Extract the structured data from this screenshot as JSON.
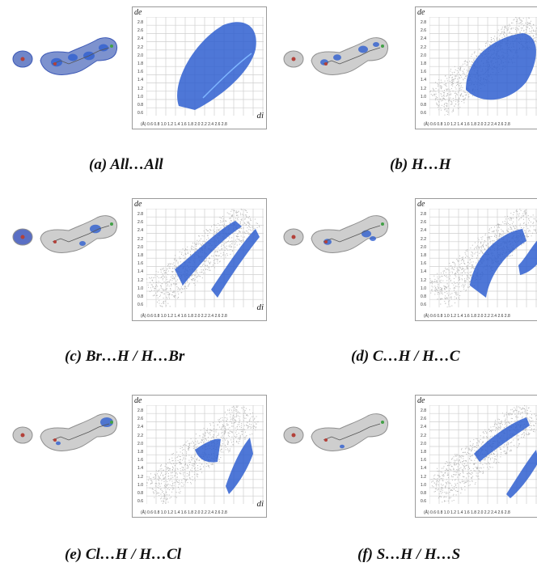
{
  "figure": {
    "panels": [
      {
        "id": "a",
        "caption": "(a) All…All"
      },
      {
        "id": "b",
        "caption": "(b) H…H"
      },
      {
        "id": "c",
        "caption": "(c) Br…H / H…Br"
      },
      {
        "id": "d",
        "caption": "(d) C…H / H…C"
      },
      {
        "id": "e",
        "caption": "(e) Cl…H / H…Cl"
      },
      {
        "id": "f",
        "caption": "(f) S…H / H…S"
      }
    ],
    "axis": {
      "y_label": "de",
      "x_label": "di",
      "y_ticks": [
        "2.8",
        "2.6",
        "2.4",
        "2.2",
        "2.0",
        "1.8",
        "1.6",
        "1.4",
        "1.2",
        "1.0",
        "0.8",
        "0.6"
      ],
      "x_ticks": "(Å) 0.6 0.8 1.0 1.2 1.4 1.6 1.8 2.0 2.2 2.4 2.6 2.8"
    },
    "colors": {
      "highlight": "#2f5fd0",
      "grey": "#b9b9b9",
      "grid": "#cfcfcf"
    }
  }
}
